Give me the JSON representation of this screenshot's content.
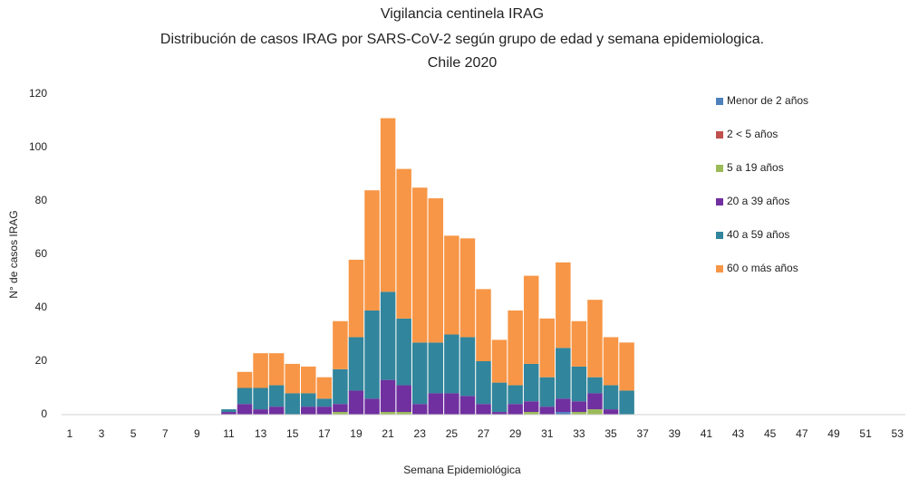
{
  "chart_data": {
    "type": "stacked_bar",
    "title": "Vigilancia centinela IRAG",
    "subtitle": "Distribución de casos IRAG por SARS-CoV-2 según grupo de edad y semana epidemiologica.",
    "subtitle2": "Chile 2020",
    "x_label": "Semana Epidemiológica",
    "y_label": "N° de casos IRAG",
    "categories": [
      1,
      null,
      3,
      null,
      5,
      null,
      7,
      null,
      9,
      null,
      11,
      null,
      13,
      null,
      15,
      null,
      17,
      null,
      19,
      null,
      21,
      null,
      23,
      null,
      25,
      null,
      27,
      null,
      29,
      null,
      31,
      null,
      33,
      null,
      35,
      null,
      37,
      null,
      39,
      null,
      41,
      null,
      43,
      null,
      45,
      null,
      47,
      null,
      49,
      null,
      51,
      null,
      53
    ],
    "ylim": [
      0,
      120
    ],
    "yticks": [
      0,
      20,
      40,
      60,
      80,
      100,
      120
    ],
    "grid": false,
    "legend": "right",
    "series": [
      {
        "name": "Menor de 2 años",
        "color": "#4f81bd",
        "values": [
          0,
          0,
          0,
          0,
          0,
          0,
          0,
          0,
          0,
          0,
          0,
          0,
          0,
          0,
          0,
          0,
          0,
          0,
          0,
          0,
          0,
          0,
          0,
          0,
          0,
          0,
          0,
          0,
          0,
          0,
          0,
          1,
          0,
          0,
          0,
          0,
          0,
          0,
          0,
          0,
          0,
          0,
          0,
          0,
          0,
          0,
          0,
          0,
          0,
          0,
          0,
          0,
          0
        ]
      },
      {
        "name": "2 < 5 años",
        "color": "#c0504d",
        "values": [
          0,
          0,
          0,
          0,
          0,
          0,
          0,
          0,
          0,
          0,
          0,
          0,
          0,
          0,
          0,
          0,
          0,
          0,
          0,
          0,
          0,
          0,
          0,
          0,
          0,
          0,
          0,
          0,
          0,
          0,
          0,
          0,
          0,
          0,
          0,
          0,
          0,
          0,
          0,
          0,
          0,
          0,
          0,
          0,
          0,
          0,
          0,
          0,
          0,
          0,
          0,
          0,
          0
        ]
      },
      {
        "name": "5 a 19 años",
        "color": "#9bbb59",
        "values": [
          0,
          0,
          0,
          0,
          0,
          0,
          0,
          0,
          0,
          0,
          0,
          0,
          0,
          0,
          0,
          0,
          0,
          1,
          0,
          0,
          1,
          1,
          0,
          0,
          0,
          0,
          0,
          0,
          0,
          1,
          0,
          0,
          1,
          2,
          0,
          0,
          0,
          0,
          0,
          0,
          0,
          0,
          0,
          0,
          0,
          0,
          0,
          0,
          0,
          0,
          0,
          0,
          0
        ]
      },
      {
        "name": "20 a 39 años",
        "color": "#7030a0",
        "values": [
          0,
          0,
          0,
          0,
          0,
          0,
          0,
          0,
          0,
          0,
          1,
          4,
          2,
          3,
          0,
          3,
          3,
          3,
          9,
          6,
          12,
          10,
          4,
          8,
          8,
          7,
          4,
          1,
          4,
          4,
          3,
          5,
          4,
          6,
          2,
          0,
          0,
          0,
          0,
          0,
          0,
          0,
          0,
          0,
          0,
          0,
          0,
          0,
          0,
          0,
          0,
          0,
          0
        ]
      },
      {
        "name": "40 a 59 años",
        "color": "#31859c",
        "values": [
          0,
          0,
          0,
          0,
          0,
          0,
          0,
          0,
          0,
          0,
          1,
          6,
          8,
          8,
          8,
          5,
          3,
          13,
          20,
          33,
          33,
          25,
          23,
          19,
          22,
          22,
          16,
          11,
          7,
          14,
          11,
          19,
          13,
          6,
          9,
          9,
          0,
          0,
          0,
          0,
          0,
          0,
          0,
          0,
          0,
          0,
          0,
          0,
          0,
          0,
          0,
          0,
          0
        ]
      },
      {
        "name": "60 o más años",
        "color": "#f79646",
        "values": [
          0,
          0,
          0,
          0,
          0,
          0,
          0,
          0,
          0,
          0,
          0,
          6,
          13,
          12,
          11,
          10,
          8,
          18,
          29,
          45,
          65,
          56,
          58,
          54,
          37,
          37,
          27,
          16,
          28,
          33,
          22,
          32,
          17,
          29,
          18,
          18,
          0,
          0,
          0,
          0,
          0,
          0,
          0,
          0,
          0,
          0,
          0,
          0,
          0,
          0,
          0,
          0,
          0
        ]
      }
    ]
  }
}
